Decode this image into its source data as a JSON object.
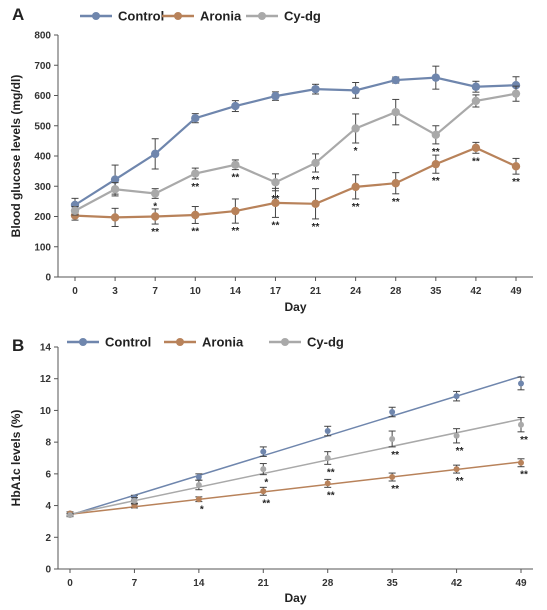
{
  "chart_data": [
    {
      "type": "line",
      "panel": "A",
      "xlabel": "Day",
      "ylabel": "Blood glucose levels (mg/dl)",
      "ylim": [
        0,
        800
      ],
      "yticks": [
        0,
        100,
        200,
        300,
        400,
        500,
        600,
        700,
        800
      ],
      "categories": [
        "0",
        "3",
        "7",
        "10",
        "14",
        "17",
        "21",
        "24",
        "28",
        "35",
        "42",
        "49"
      ],
      "legend_position": "top-left",
      "grid": false,
      "series": [
        {
          "name": "Control",
          "color": "#6f86ad",
          "values": [
            238,
            322,
            407,
            525,
            565,
            598,
            621,
            617,
            651,
            659,
            629,
            634
          ],
          "errors": [
            22,
            48,
            50,
            15,
            18,
            14,
            16,
            26,
            10,
            38,
            18,
            28
          ],
          "sig": [
            "",
            "",
            "",
            "",
            "",
            "",
            "",
            "",
            "",
            "",
            "",
            ""
          ]
        },
        {
          "name": "Aronia",
          "color": "#b8825a",
          "values": [
            203,
            197,
            200,
            205,
            218,
            245,
            242,
            298,
            310,
            373,
            427,
            366
          ],
          "errors": [
            15,
            30,
            25,
            28,
            40,
            48,
            50,
            40,
            35,
            30,
            18,
            26
          ],
          "sig": [
            "",
            "",
            "**",
            "**",
            "**",
            "**",
            "**",
            "**",
            "**",
            "**",
            "**",
            "**"
          ]
        },
        {
          "name": "Cy-dg",
          "color": "#a9a9a9",
          "values": [
            219,
            290,
            276,
            342,
            371,
            313,
            377,
            491,
            545,
            470,
            582,
            606
          ],
          "errors": [
            14,
            22,
            16,
            18,
            16,
            28,
            30,
            48,
            42,
            30,
            20,
            25
          ],
          "sig": [
            "",
            "",
            "*",
            "**",
            "**",
            "**",
            "**",
            "*",
            "",
            "**",
            "",
            ""
          ]
        }
      ]
    },
    {
      "type": "scatter",
      "panel": "B",
      "xlabel": "Day",
      "ylabel": "HbA1c levels (%)",
      "ylim": [
        0,
        14
      ],
      "yticks": [
        0,
        2,
        4,
        6,
        8,
        10,
        12,
        14
      ],
      "xlim": [
        0,
        49
      ],
      "xticks": [
        0,
        7,
        14,
        21,
        28,
        35,
        42,
        49
      ],
      "legend_position": "top-left",
      "grid": false,
      "series": [
        {
          "name": "Control",
          "color": "#6f86ad",
          "x": [
            0,
            7,
            14,
            21,
            28,
            35,
            42,
            49
          ],
          "values": [
            3.5,
            4.5,
            5.8,
            7.4,
            8.7,
            9.9,
            10.9,
            11.7
          ],
          "errors": [
            0.1,
            0.15,
            0.2,
            0.3,
            0.3,
            0.3,
            0.3,
            0.4
          ],
          "fit": [
            3.4,
            12.15
          ],
          "sig": [
            "",
            "",
            "",
            "",
            "",
            "",
            "",
            ""
          ]
        },
        {
          "name": "Aronia",
          "color": "#b8825a",
          "x": [
            0,
            7,
            14,
            21,
            28,
            35,
            42,
            49
          ],
          "values": [
            3.5,
            4.0,
            4.4,
            4.9,
            5.4,
            5.8,
            6.3,
            6.7
          ],
          "errors": [
            0.1,
            0.15,
            0.15,
            0.25,
            0.25,
            0.25,
            0.25,
            0.25
          ],
          "fit": [
            3.45,
            6.75
          ],
          "sig": [
            "",
            "",
            "*",
            "**",
            "**",
            "**",
            "**",
            "**"
          ]
        },
        {
          "name": "Cy-dg",
          "color": "#a9a9a9",
          "x": [
            0,
            7,
            14,
            21,
            28,
            35,
            42,
            49
          ],
          "values": [
            3.4,
            4.3,
            5.3,
            6.3,
            7.0,
            8.2,
            8.4,
            9.1
          ],
          "errors": [
            0.1,
            0.2,
            0.3,
            0.35,
            0.4,
            0.5,
            0.45,
            0.45
          ],
          "fit": [
            3.45,
            9.45
          ],
          "sig": [
            "",
            "",
            "",
            "*",
            "**",
            "**",
            "**",
            "**"
          ]
        }
      ]
    }
  ]
}
